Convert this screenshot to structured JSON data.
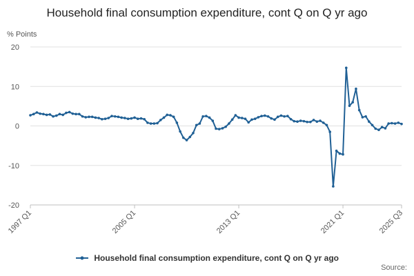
{
  "chart_data": {
    "type": "line",
    "title": "Household final consumption expenditure, cont Q on Q yr ago",
    "ylabel": "% Points",
    "xlabel": "",
    "ylim": [
      -20,
      20
    ],
    "yticks": [
      20,
      10,
      0,
      -10,
      -20
    ],
    "xticks": [
      {
        "label": "1997 Q1",
        "index": 0
      },
      {
        "label": "2005 Q1",
        "index": 32
      },
      {
        "label": "2013 Q1",
        "index": 64
      },
      {
        "label": "2021 Q1",
        "index": 96
      },
      {
        "label": "2025 Q3",
        "index": 114
      }
    ],
    "grid": true,
    "legend_position": "bottom",
    "series": [
      {
        "name": "Household final consumption expenditure, cont Q on Q yr ago",
        "color": "#206095",
        "x_start": "1997 Q1",
        "x_end": "2025 Q3",
        "values": [
          2.7,
          3.0,
          3.4,
          3.1,
          3.0,
          2.8,
          2.9,
          2.4,
          2.6,
          3.0,
          2.8,
          3.3,
          3.5,
          3.1,
          3.0,
          3.0,
          2.4,
          2.2,
          2.3,
          2.3,
          2.1,
          2.0,
          1.7,
          1.8,
          2.0,
          2.5,
          2.4,
          2.3,
          2.1,
          2.0,
          1.8,
          1.9,
          2.1,
          1.8,
          1.9,
          1.7,
          0.8,
          0.6,
          0.6,
          0.7,
          1.5,
          2.1,
          2.8,
          2.7,
          2.3,
          0.8,
          -1.4,
          -3.0,
          -3.6,
          -2.8,
          -1.8,
          0.2,
          0.6,
          2.4,
          2.5,
          2.1,
          1.3,
          -0.7,
          -0.8,
          -0.6,
          -0.2,
          0.6,
          1.6,
          2.7,
          2.1,
          2.0,
          1.8,
          0.9,
          1.6,
          1.8,
          2.2,
          2.5,
          2.6,
          2.4,
          1.9,
          1.6,
          2.3,
          2.6,
          2.4,
          2.5,
          1.7,
          1.2,
          1.1,
          1.3,
          1.2,
          1.0,
          1.0,
          1.5,
          1.1,
          1.3,
          0.8,
          0.2,
          -1.5,
          -15.3,
          -6.3,
          -7.0,
          -7.2,
          14.7,
          5.1,
          6.0,
          9.4,
          4.0,
          2.2,
          2.4,
          1.1,
          0.2,
          -0.7,
          -1.0,
          -0.3,
          -0.6,
          0.6,
          0.7,
          0.6,
          0.8,
          0.5
        ]
      }
    ]
  },
  "legend": {
    "label": "Household final consumption expenditure, cont Q on Q yr ago"
  },
  "source": {
    "label": "Source:"
  }
}
